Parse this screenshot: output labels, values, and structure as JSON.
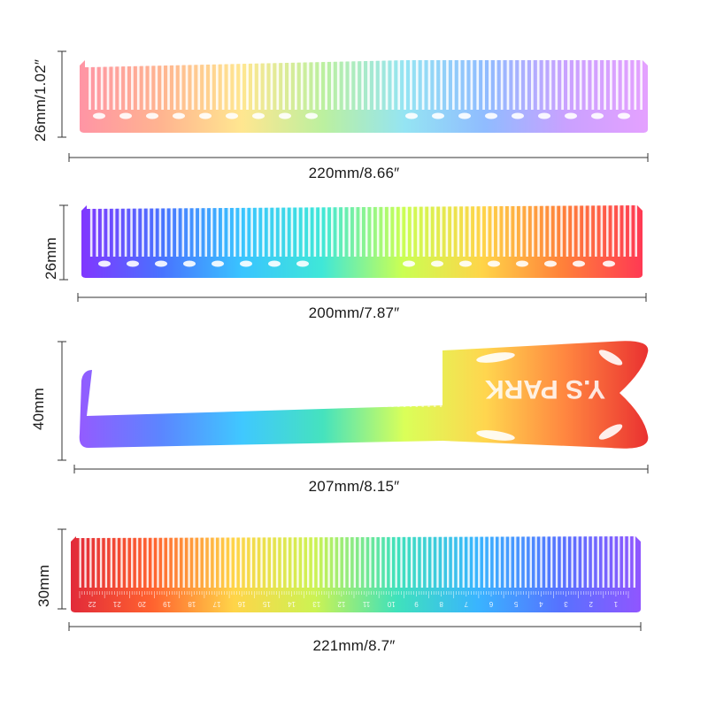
{
  "combs": [
    {
      "id": "comb-1",
      "width_label": "220mm/8.66″",
      "height_label": "26mm/1.02″",
      "gradient": [
        "#ff8fa0",
        "#ffb08a",
        "#ffe58a",
        "#b8ef9a",
        "#8fe3f2",
        "#8ab8ff",
        "#c79cff",
        "#e39cff"
      ]
    },
    {
      "id": "comb-2",
      "width_label": "200mm/7.87″",
      "height_label": "26mm",
      "gradient": [
        "#7a2cff",
        "#3f6bff",
        "#2fc1ff",
        "#35e6d6",
        "#c7ff4a",
        "#ffd23f",
        "#ff7a2f",
        "#ff2f4a"
      ]
    },
    {
      "id": "comb-3",
      "width_label": "207mm/8.15″",
      "height_label": "40mm",
      "brand_text": "Y.S PARK",
      "gradient": [
        "#8a4dff",
        "#4d7bff",
        "#2fc3ff",
        "#35e0b8",
        "#d7ff4a",
        "#ffd23f",
        "#ff7a2f",
        "#e8201f"
      ]
    },
    {
      "id": "comb-4",
      "width_label": "221mm/8.7″",
      "height_label": "30mm",
      "ruler_numbers": [
        "22",
        "21",
        "20",
        "19",
        "18",
        "17",
        "16",
        "15",
        "14",
        "13",
        "12",
        "11",
        "10",
        "9",
        "8",
        "7",
        "6",
        "5",
        "4",
        "3",
        "2",
        "1"
      ],
      "gradient": [
        "#e01f2f",
        "#ff5a24",
        "#ffd23f",
        "#c9f24a",
        "#35e0b8",
        "#2fb0ff",
        "#4d6bff",
        "#8a4dff"
      ]
    }
  ],
  "colors": {
    "dimension_line": "#333333",
    "text": "#1a1a1a",
    "background": "#ffffff"
  }
}
